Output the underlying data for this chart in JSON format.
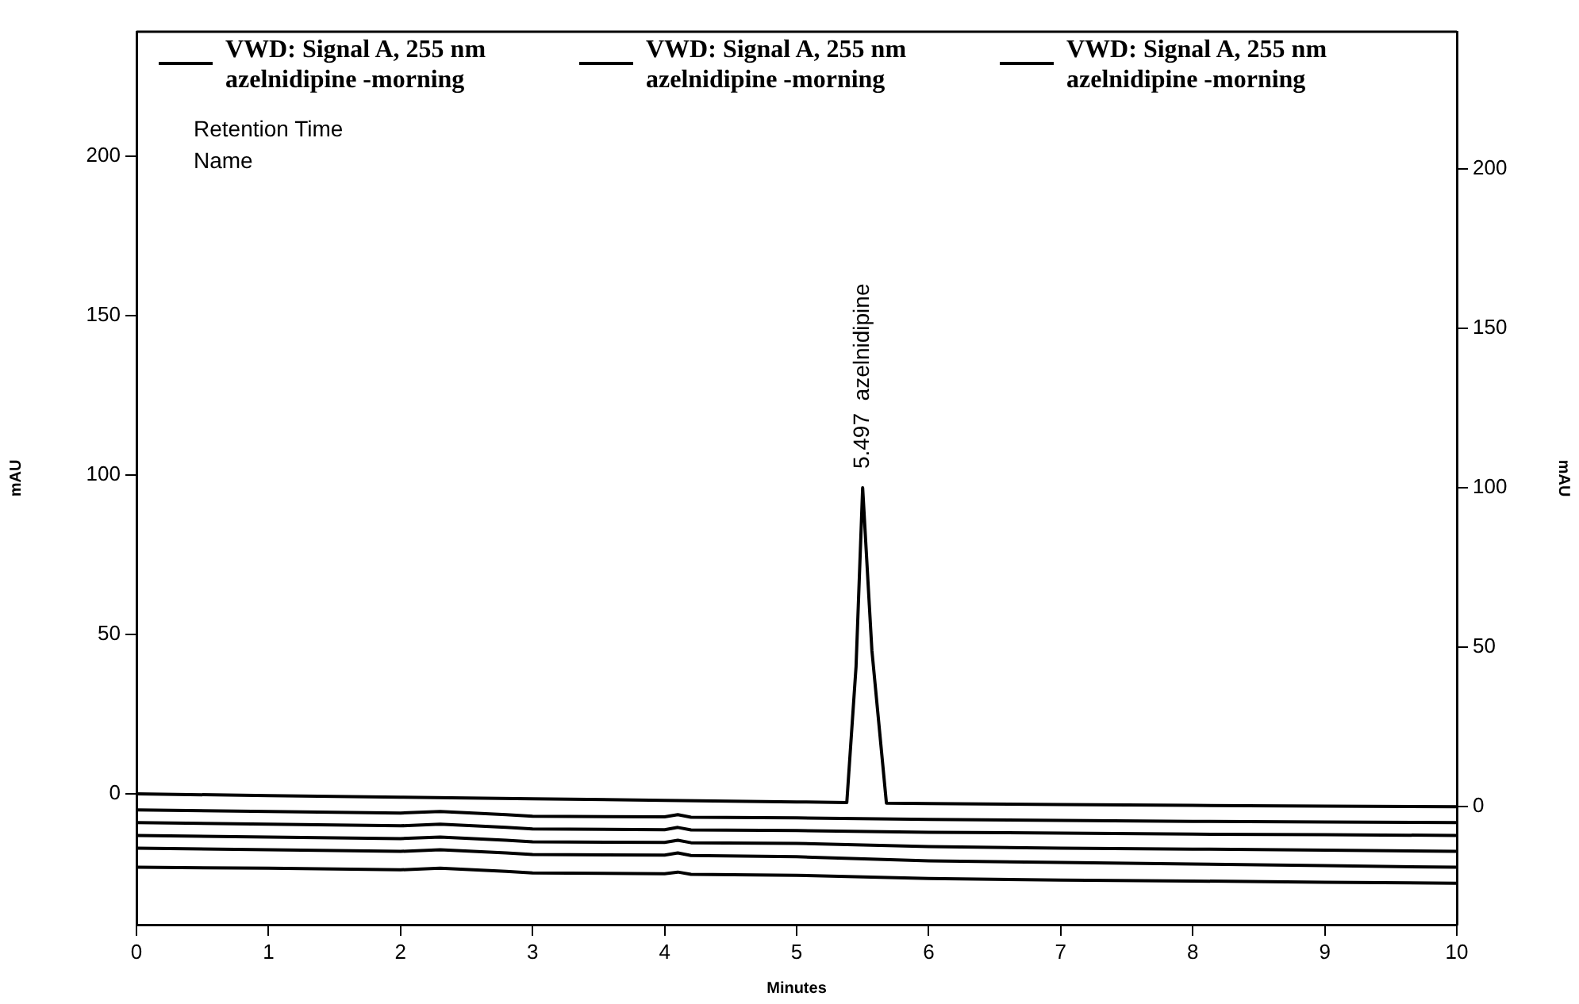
{
  "chart_data": {
    "type": "line",
    "xlabel": "Minutes",
    "ylabel": "mAU",
    "y2label": "mAU",
    "xlim": [
      0,
      10
    ],
    "xticks": [
      0,
      1,
      2,
      3,
      4,
      5,
      6,
      7,
      8,
      9,
      10
    ],
    "ylim": [
      -41,
      239
    ],
    "yticks": [
      0,
      50,
      100,
      150,
      200
    ],
    "y2lim": [
      -37,
      243
    ],
    "y2ticks": [
      0,
      50,
      100,
      150,
      200
    ],
    "legend": "top",
    "grid": false,
    "marker": "none",
    "line_style": "solid",
    "annotations": [
      "Retention Time",
      "Name",
      {
        "text": "5.497  azelnidipine",
        "x": 5.5,
        "y": 96
      }
    ],
    "series": [
      {
        "name": "VWD: Signal A, 255 nm azelnidipine -morning",
        "color": "#000000",
        "x": [
          0,
          1,
          2,
          3,
          4,
          5,
          5.38,
          5.45,
          5.5,
          5.57,
          5.68,
          6,
          7,
          8,
          9,
          10
        ],
        "values": [
          0,
          -0.5,
          -1,
          -1.5,
          -2,
          -2.5,
          -2.7,
          40,
          96,
          45,
          -2.9,
          -3,
          -3.3,
          -3.6,
          -3.8,
          -4
        ]
      },
      {
        "name": "VWD: Signal A, 255 nm azelnidipine -morning",
        "color": "#000000",
        "x": [
          0,
          1,
          2,
          2.3,
          2.8,
          3,
          4,
          4.1,
          4.2,
          5,
          6,
          7,
          8,
          9,
          10
        ],
        "values": [
          -5,
          -5.5,
          -6,
          -5.5,
          -6.5,
          -7,
          -7.2,
          -6.5,
          -7.3,
          -7.5,
          -8,
          -8.3,
          -8.6,
          -8.8,
          -9
        ]
      },
      {
        "name": "VWD: Signal A, 255 nm azelnidipine -morning",
        "color": "#000000",
        "x": [
          0,
          1,
          2,
          2.3,
          2.8,
          3,
          4,
          4.1,
          4.2,
          5,
          6,
          7,
          8,
          9,
          10
        ],
        "values": [
          -9,
          -9.5,
          -10,
          -9.5,
          -10.5,
          -11,
          -11.2,
          -10.5,
          -11.3,
          -11.5,
          -12,
          -12.3,
          -12.6,
          -12.8,
          -13
        ]
      },
      {
        "color": "#000000",
        "x": [
          0,
          1,
          2,
          2.3,
          2.8,
          3,
          4,
          4.1,
          4.2,
          5,
          6,
          7,
          8,
          9,
          10
        ],
        "values": [
          -13,
          -13.5,
          -14,
          -13.5,
          -14.5,
          -15,
          -15.2,
          -14.5,
          -15.3,
          -15.5,
          -16.5,
          -17,
          -17.3,
          -17.6,
          -18
        ]
      },
      {
        "color": "#000000",
        "x": [
          0,
          1,
          2,
          2.3,
          2.8,
          3,
          4,
          4.1,
          4.2,
          5,
          6,
          7,
          8,
          9,
          10
        ],
        "values": [
          -17,
          -17.5,
          -18,
          -17.5,
          -18.5,
          -19,
          -19.2,
          -18.5,
          -19.3,
          -19.7,
          -21,
          -21.5,
          -22,
          -22.5,
          -23
        ]
      },
      {
        "color": "#000000",
        "x": [
          0,
          1,
          2,
          2.3,
          2.8,
          3,
          4,
          4.1,
          4.2,
          5,
          6,
          7,
          8,
          9,
          10
        ],
        "values": [
          -23,
          -23.3,
          -23.8,
          -23.3,
          -24.3,
          -24.8,
          -25,
          -24.5,
          -25.2,
          -25.5,
          -26.5,
          -27,
          -27.3,
          -27.7,
          -28
        ]
      }
    ]
  }
}
